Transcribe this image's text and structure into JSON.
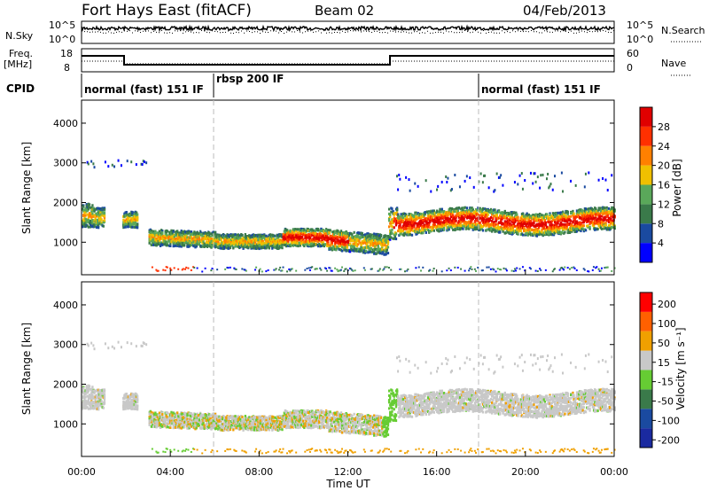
{
  "header": {
    "station": "Fort Hays East (fitACF)",
    "beam": "Beam 02",
    "date": "04/Feb/2013"
  },
  "noise_panel": {
    "left_label": "N.Sky",
    "right_label": "N.Search",
    "left_ticks": [
      "10^5",
      "10^0"
    ],
    "right_ticks": [
      "10^5",
      "10^0"
    ]
  },
  "freq_panel": {
    "left_label_line1": "Freq.",
    "left_label_line2": "[MHz]",
    "right_label": "Nave",
    "left_ticks": [
      "18",
      "8"
    ],
    "right_ticks": [
      "60",
      "0"
    ]
  },
  "cpid_panel": {
    "label": "CPID",
    "segments": [
      {
        "label": "normal (fast) 151 IF",
        "start_hour": 0
      },
      {
        "label": "rbsp 200 IF",
        "start_hour": 6
      },
      {
        "label": "normal (fast) 151 IF",
        "start_hour": 18
      }
    ]
  },
  "chart_data": [
    {
      "type": "heatmap",
      "name": "power-panel",
      "ylabel": "Slant Range [km]",
      "y_ticks": [
        1000,
        2000,
        3000,
        4000
      ],
      "ylim": [
        180,
        4580
      ],
      "xlim": [
        0,
        24
      ],
      "colorbar_label": "Power [dB]",
      "colorbar_ticks": [
        "4",
        "8",
        "12",
        "16",
        "20",
        "24",
        "28"
      ],
      "colors": [
        "#0000ff",
        "#1a4aa0",
        "#3a7a4a",
        "#5aa85a",
        "#f0c000",
        "#ff8000",
        "#ff3000",
        "#e00000"
      ]
    },
    {
      "type": "heatmap",
      "name": "velocity-panel",
      "ylabel": "Slant Range [km]",
      "y_ticks": [
        1000,
        2000,
        3000,
        4000
      ],
      "ylim": [
        180,
        4580
      ],
      "xlim": [
        0,
        24
      ],
      "xlabel": "Time UT",
      "x_ticks": [
        "00:00",
        "04:00",
        "08:00",
        "12:00",
        "16:00",
        "20:00",
        "00:00"
      ],
      "colorbar_label": "Velocity [m s⁻¹]",
      "colorbar_ticks": [
        "200",
        "100",
        "50",
        "15",
        "-15",
        "-50",
        "-100",
        "-200"
      ],
      "colors": [
        "#1a2aa0",
        "#1a4aa0",
        "#3a7a4a",
        "#66cc33",
        "#c8c8c8",
        "#f0a000",
        "#ff6000",
        "#ff0000"
      ]
    }
  ]
}
